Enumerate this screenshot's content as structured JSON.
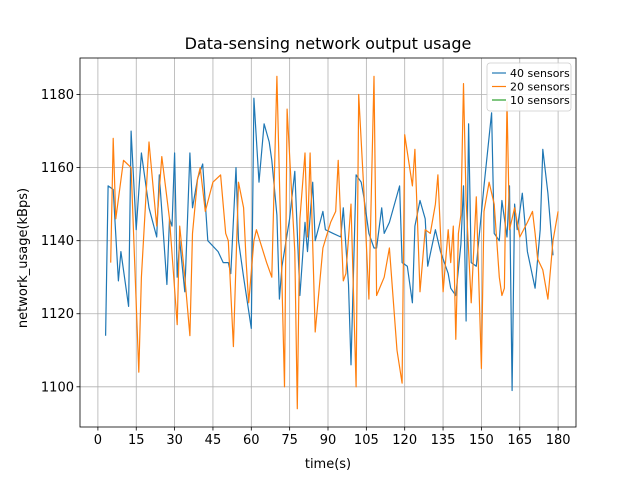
{
  "chart_data": {
    "type": "line",
    "title": "Data-sensing network output usage",
    "xlabel": "time(s)",
    "ylabel": "network_usage(kBps)",
    "xlim": [
      -7,
      187
    ],
    "ylim": [
      1089,
      1190
    ],
    "xticks": [
      0,
      15,
      30,
      45,
      60,
      75,
      90,
      105,
      120,
      135,
      150,
      165,
      180
    ],
    "yticks": [
      1100,
      1120,
      1140,
      1160,
      1180
    ],
    "grid": true,
    "legend_position": "top-right",
    "series": [
      {
        "name": "40 sensors",
        "color": "#1f77b4",
        "points": [
          [
            3,
            1114
          ],
          [
            4,
            1155
          ],
          [
            6,
            1154
          ],
          [
            8,
            1129
          ],
          [
            9,
            1137
          ],
          [
            12,
            1122
          ],
          [
            13,
            1170
          ],
          [
            15,
            1143
          ],
          [
            17,
            1164
          ],
          [
            20,
            1149
          ],
          [
            23,
            1141
          ],
          [
            24,
            1158
          ],
          [
            27,
            1128
          ],
          [
            28,
            1146
          ],
          [
            29,
            1144
          ],
          [
            30,
            1164
          ],
          [
            31,
            1130
          ],
          [
            32,
            1140
          ],
          [
            34,
            1126
          ],
          [
            35,
            1145
          ],
          [
            36,
            1164
          ],
          [
            37,
            1149
          ],
          [
            39,
            1157
          ],
          [
            41,
            1161
          ],
          [
            43,
            1140
          ],
          [
            47,
            1137
          ],
          [
            49,
            1134
          ],
          [
            51,
            1134
          ],
          [
            52,
            1131
          ],
          [
            54,
            1160
          ],
          [
            55,
            1140
          ],
          [
            57,
            1130
          ],
          [
            60,
            1116
          ],
          [
            61,
            1179
          ],
          [
            63,
            1156
          ],
          [
            65,
            1172
          ],
          [
            67,
            1167
          ],
          [
            68,
            1162
          ],
          [
            70,
            1147
          ],
          [
            71,
            1124
          ],
          [
            72,
            1133
          ],
          [
            75,
            1146
          ],
          [
            77,
            1159
          ],
          [
            79,
            1125
          ],
          [
            81,
            1145
          ],
          [
            82,
            1137
          ],
          [
            84,
            1156
          ],
          [
            85,
            1140
          ],
          [
            88,
            1148
          ],
          [
            89,
            1143
          ],
          [
            92,
            1142
          ],
          [
            95,
            1141
          ],
          [
            96,
            1149
          ],
          [
            98,
            1128
          ],
          [
            99,
            1106
          ],
          [
            101,
            1158
          ],
          [
            103,
            1156
          ],
          [
            104,
            1152
          ],
          [
            106,
            1142
          ],
          [
            108,
            1138
          ],
          [
            109,
            1138
          ],
          [
            111,
            1149
          ],
          [
            112,
            1142
          ],
          [
            114,
            1145
          ],
          [
            118,
            1155
          ],
          [
            119,
            1134
          ],
          [
            121,
            1133
          ],
          [
            123,
            1123
          ],
          [
            124,
            1144
          ],
          [
            126,
            1151
          ],
          [
            128,
            1146
          ],
          [
            129,
            1133
          ],
          [
            132,
            1143
          ],
          [
            134,
            1137
          ],
          [
            137,
            1131
          ],
          [
            138,
            1127
          ],
          [
            140,
            1125
          ],
          [
            142,
            1139
          ],
          [
            143,
            1155
          ],
          [
            144,
            1118
          ],
          [
            145,
            1172
          ],
          [
            146,
            1134
          ],
          [
            148,
            1133
          ],
          [
            151,
            1155
          ],
          [
            154,
            1175
          ],
          [
            155,
            1142
          ],
          [
            157,
            1140
          ],
          [
            158,
            1151
          ],
          [
            160,
            1141
          ],
          [
            161,
            1155
          ],
          [
            162,
            1099
          ],
          [
            163,
            1150
          ],
          [
            164,
            1143
          ],
          [
            165,
            1148
          ],
          [
            166,
            1153
          ],
          [
            168,
            1137
          ],
          [
            171,
            1127
          ],
          [
            173,
            1143
          ],
          [
            174,
            1165
          ],
          [
            176,
            1153
          ],
          [
            178,
            1136
          ]
        ]
      },
      {
        "name": "20 sensors",
        "color": "#ff7f0e",
        "points": [
          [
            5,
            1134
          ],
          [
            6,
            1168
          ],
          [
            7,
            1146
          ],
          [
            10,
            1162
          ],
          [
            13,
            1160
          ],
          [
            16,
            1104
          ],
          [
            17,
            1130
          ],
          [
            20,
            1167
          ],
          [
            23,
            1144
          ],
          [
            25,
            1163
          ],
          [
            28,
            1146
          ],
          [
            31,
            1117
          ],
          [
            32,
            1144
          ],
          [
            34,
            1130
          ],
          [
            36,
            1114
          ],
          [
            37,
            1142
          ],
          [
            39,
            1157
          ],
          [
            40,
            1160
          ],
          [
            42,
            1148
          ],
          [
            45,
            1156
          ],
          [
            48,
            1158
          ],
          [
            50,
            1142
          ],
          [
            51,
            1140
          ],
          [
            53,
            1111
          ],
          [
            55,
            1156
          ],
          [
            57,
            1149
          ],
          [
            58,
            1134
          ],
          [
            59,
            1123
          ],
          [
            61,
            1140
          ],
          [
            62,
            1143
          ],
          [
            66,
            1134
          ],
          [
            68,
            1130
          ],
          [
            70,
            1185
          ],
          [
            73,
            1100
          ],
          [
            74,
            1176
          ],
          [
            77,
            1137
          ],
          [
            78,
            1094
          ],
          [
            79,
            1146
          ],
          [
            81,
            1164
          ],
          [
            82,
            1141
          ],
          [
            83,
            1164
          ],
          [
            85,
            1115
          ],
          [
            88,
            1138
          ],
          [
            91,
            1145
          ],
          [
            93,
            1148
          ],
          [
            94,
            1162
          ],
          [
            96,
            1129
          ],
          [
            97,
            1131
          ],
          [
            99,
            1150
          ],
          [
            101,
            1100
          ],
          [
            102,
            1180
          ],
          [
            104,
            1154
          ],
          [
            106,
            1124
          ],
          [
            108,
            1185
          ],
          [
            109,
            1125
          ],
          [
            112,
            1130
          ],
          [
            114,
            1138
          ],
          [
            117,
            1110
          ],
          [
            119,
            1101
          ],
          [
            120,
            1169
          ],
          [
            123,
            1155
          ],
          [
            124,
            1165
          ],
          [
            126,
            1126
          ],
          [
            128,
            1143
          ],
          [
            130,
            1142
          ],
          [
            132,
            1150
          ],
          [
            133,
            1158
          ],
          [
            135,
            1126
          ],
          [
            137,
            1143
          ],
          [
            138,
            1134
          ],
          [
            139,
            1144
          ],
          [
            140,
            1113
          ],
          [
            141,
            1142
          ],
          [
            142,
            1147
          ],
          [
            143,
            1183
          ],
          [
            144,
            1151
          ],
          [
            146,
            1123
          ],
          [
            148,
            1152
          ],
          [
            150,
            1105
          ],
          [
            151,
            1148
          ],
          [
            153,
            1156
          ],
          [
            155,
            1150
          ],
          [
            157,
            1130
          ],
          [
            158,
            1125
          ],
          [
            159,
            1127
          ],
          [
            160,
            1178
          ],
          [
            161,
            1143
          ],
          [
            163,
            1149
          ],
          [
            165,
            1141
          ],
          [
            168,
            1145
          ],
          [
            170,
            1148
          ],
          [
            171,
            1142
          ],
          [
            172,
            1135
          ],
          [
            174,
            1132
          ],
          [
            176,
            1124
          ],
          [
            178,
            1140
          ],
          [
            180,
            1148
          ]
        ]
      },
      {
        "name": "10 sensors",
        "color": "#2ca02c",
        "points": []
      }
    ]
  }
}
